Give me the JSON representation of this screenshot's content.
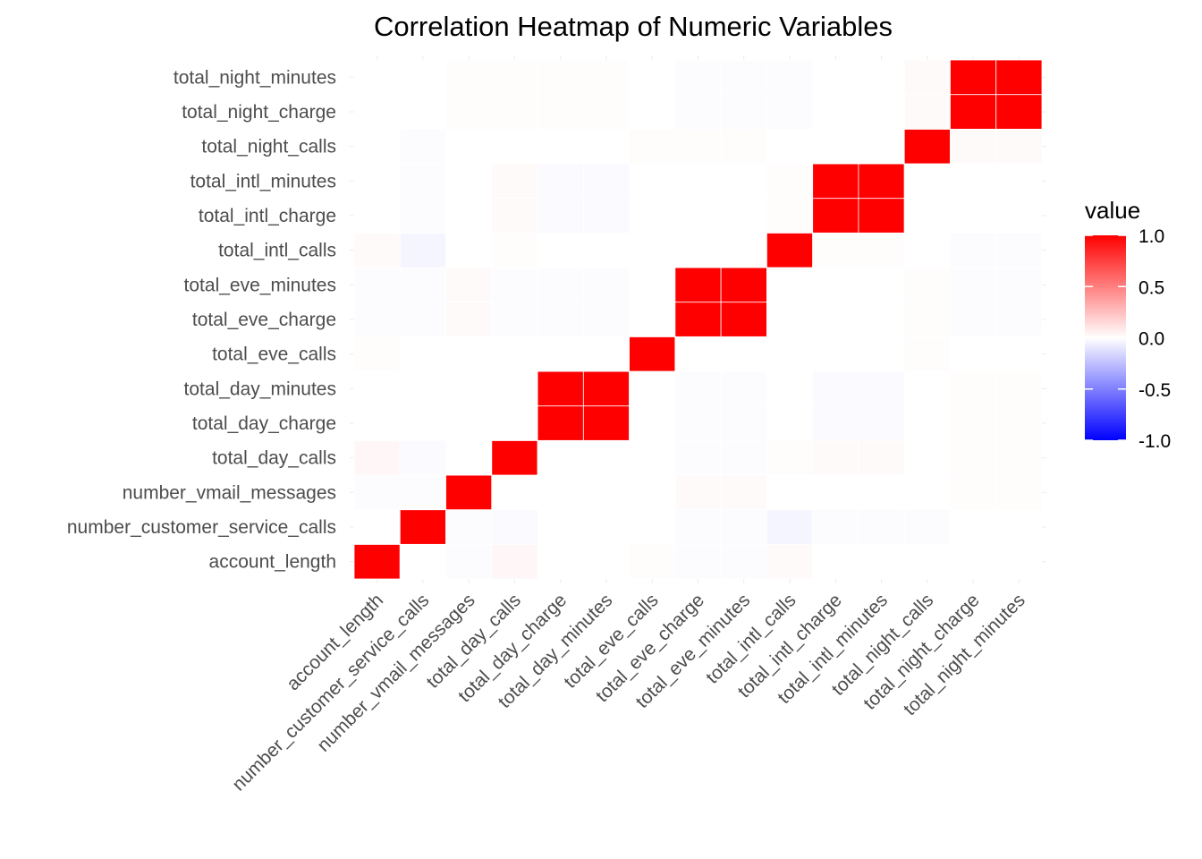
{
  "chart_data": {
    "type": "heatmap",
    "title": "Correlation Heatmap of Numeric Variables",
    "x_categories": [
      "account_length",
      "number_customer_service_calls",
      "number_vmail_messages",
      "total_day_calls",
      "total_day_charge",
      "total_day_minutes",
      "total_eve_calls",
      "total_eve_charge",
      "total_eve_minutes",
      "total_intl_calls",
      "total_intl_charge",
      "total_intl_minutes",
      "total_night_calls",
      "total_night_charge",
      "total_night_minutes"
    ],
    "y_categories": [
      "account_length",
      "number_customer_service_calls",
      "number_vmail_messages",
      "total_day_calls",
      "total_day_charge",
      "total_day_minutes",
      "total_eve_calls",
      "total_eve_charge",
      "total_eve_minutes",
      "total_intl_calls",
      "total_intl_charge",
      "total_intl_minutes",
      "total_night_calls",
      "total_night_charge",
      "total_night_minutes"
    ],
    "values": [
      [
        1.0,
        -0.0,
        -0.01,
        0.03,
        -0.0,
        -0.0,
        0.01,
        -0.01,
        -0.01,
        0.02,
        0.0,
        0.0,
        -0.0,
        -0.0,
        -0.0
      ],
      [
        -0.0,
        1.0,
        -0.01,
        -0.02,
        -0.0,
        -0.0,
        0.0,
        -0.01,
        -0.01,
        -0.04,
        -0.01,
        -0.01,
        -0.01,
        -0.0,
        -0.0
      ],
      [
        -0.01,
        -0.01,
        1.0,
        -0.0,
        0.0,
        0.0,
        -0.0,
        0.02,
        0.02,
        0.0,
        0.0,
        0.0,
        0.0,
        0.01,
        0.01
      ],
      [
        0.03,
        -0.02,
        -0.0,
        1.0,
        0.0,
        0.0,
        0.0,
        -0.01,
        -0.01,
        0.01,
        0.02,
        0.02,
        -0.0,
        0.01,
        0.01
      ],
      [
        -0.0,
        -0.0,
        0.0,
        0.0,
        1.0,
        1.0,
        0.0,
        -0.01,
        -0.01,
        -0.0,
        -0.02,
        -0.02,
        0.0,
        0.01,
        0.01
      ],
      [
        -0.0,
        -0.0,
        0.0,
        0.0,
        1.0,
        1.0,
        0.0,
        -0.01,
        -0.01,
        -0.0,
        -0.02,
        -0.02,
        0.0,
        0.01,
        0.01
      ],
      [
        0.01,
        0.0,
        -0.0,
        0.0,
        0.0,
        0.0,
        1.0,
        -0.0,
        -0.0,
        0.0,
        0.0,
        0.0,
        0.01,
        -0.0,
        -0.0
      ],
      [
        -0.01,
        -0.01,
        0.02,
        -0.01,
        -0.01,
        -0.01,
        -0.0,
        1.0,
        1.0,
        -0.0,
        -0.0,
        -0.0,
        0.01,
        -0.01,
        -0.01
      ],
      [
        -0.01,
        -0.01,
        0.02,
        -0.01,
        -0.01,
        -0.01,
        -0.0,
        1.0,
        1.0,
        -0.0,
        -0.0,
        -0.0,
        0.01,
        -0.01,
        -0.01
      ],
      [
        0.02,
        -0.04,
        0.0,
        0.01,
        -0.0,
        -0.0,
        0.0,
        -0.0,
        -0.0,
        1.0,
        0.01,
        0.01,
        0.0,
        -0.01,
        -0.01
      ],
      [
        0.0,
        -0.01,
        0.0,
        0.02,
        -0.02,
        -0.02,
        0.0,
        -0.0,
        -0.0,
        0.01,
        1.0,
        1.0,
        0.0,
        0.0,
        0.0
      ],
      [
        0.0,
        -0.01,
        0.0,
        0.02,
        -0.02,
        -0.02,
        0.0,
        -0.0,
        -0.0,
        0.01,
        1.0,
        1.0,
        0.0,
        0.0,
        0.0
      ],
      [
        -0.0,
        -0.01,
        0.0,
        -0.0,
        0.0,
        0.0,
        0.01,
        0.01,
        0.01,
        0.0,
        0.0,
        0.0,
        1.0,
        0.02,
        0.02
      ],
      [
        -0.0,
        -0.0,
        0.01,
        0.01,
        0.01,
        0.01,
        -0.0,
        -0.01,
        -0.01,
        -0.01,
        0.0,
        0.0,
        0.02,
        1.0,
        1.0
      ],
      [
        -0.0,
        -0.0,
        0.01,
        0.01,
        0.01,
        0.01,
        -0.0,
        -0.01,
        -0.01,
        -0.01,
        0.0,
        0.0,
        0.02,
        1.0,
        1.0
      ]
    ],
    "legend": {
      "title": "value",
      "labels": [
        "1.0",
        "0.5",
        "0.0",
        "-0.5",
        "-1.0"
      ],
      "breaks": [
        1.0,
        0.5,
        0.0,
        -0.5,
        -1.0
      ],
      "range": [
        -1.0,
        1.0
      ],
      "low_color": "#0000ff",
      "mid_color": "#ffffff",
      "high_color": "#ff0000",
      "placement": "right"
    },
    "grid": true,
    "grid_color": "#ebebeb"
  }
}
